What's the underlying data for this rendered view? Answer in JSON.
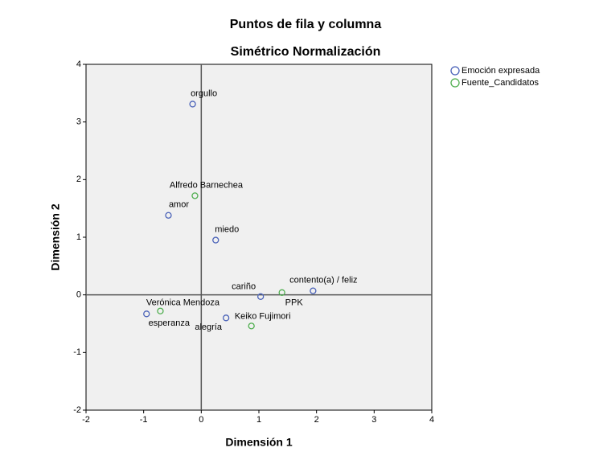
{
  "chart_data": {
    "type": "scatter",
    "title": "Puntos de fila y columna",
    "subtitle": "Simétrico Normalización",
    "x_label": "Dimensión 1",
    "y_label": "Dimensión 2",
    "xlim": [
      -2,
      4
    ],
    "ylim": [
      -2,
      4
    ],
    "xticks": [
      -2,
      -1,
      0,
      1,
      2,
      3,
      4
    ],
    "yticks": [
      -2,
      -1,
      0,
      1,
      2,
      3,
      4
    ],
    "series": [
      {
        "name": "Emoción expresada",
        "color": "#4a62b8",
        "labels": [
          "orgullo",
          "amor",
          "miedo",
          "contento(a) / feliz",
          "cariño",
          "esperanza",
          "alegría"
        ],
        "x": [
          -0.15,
          -0.57,
          0.25,
          1.94,
          1.03,
          -0.95,
          0.43
        ],
        "values": [
          3.31,
          1.38,
          0.95,
          0.07,
          -0.03,
          -0.33,
          -0.4
        ]
      },
      {
        "name": "Fuente_Candidatos",
        "color": "#4fae4f",
        "labels": [
          "Alfredo Barnechea",
          "PPK",
          "Verónica Mendoza",
          "Keiko Fujimori"
        ],
        "x": [
          -0.11,
          1.4,
          -0.71,
          0.87
        ],
        "values": [
          1.72,
          0.04,
          -0.28,
          -0.54
        ]
      }
    ]
  }
}
